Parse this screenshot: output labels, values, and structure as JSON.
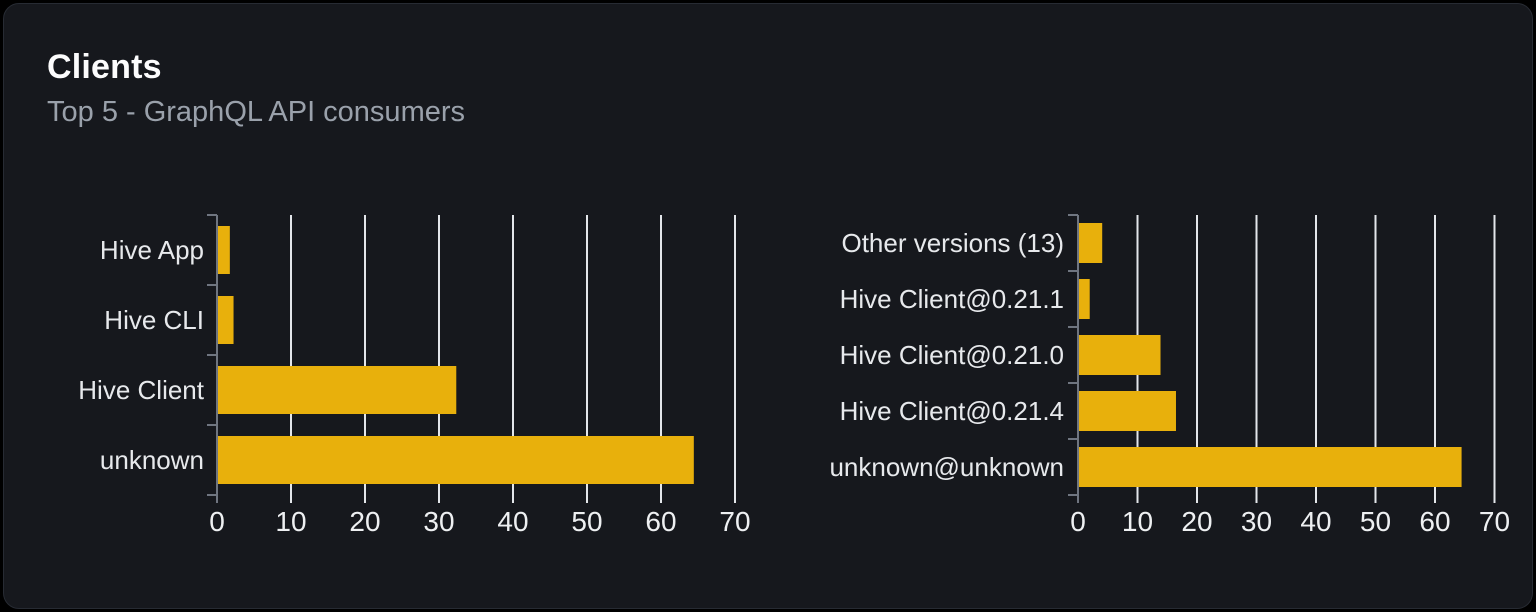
{
  "header": {
    "title": "Clients",
    "subtitle": "Top 5 - GraphQL API consumers"
  },
  "colors": {
    "page_bg": "#000000",
    "card_bg": "#16181d",
    "card_border": "#272b33",
    "bar": "#e8b00c",
    "gridline": "#e3e6ea",
    "axis": "#6f7580",
    "category_label": "#e7e9ec",
    "tick_label": "#eef0f2",
    "title": "#fcfcfd",
    "subtitle": "#9aa1ab"
  },
  "chart_data": [
    {
      "type": "bar",
      "orientation": "horizontal",
      "name": "clients-by-name",
      "categories": [
        "Hive App",
        "Hive CLI",
        "Hive Client",
        "unknown"
      ],
      "values": [
        1.6,
        2.1,
        32.2,
        64.3
      ],
      "xticks": [
        0,
        10,
        20,
        30,
        40,
        50,
        60,
        70
      ],
      "xlim": [
        0,
        70
      ],
      "grid": "vertical",
      "legend": "none",
      "title": "",
      "xlabel": "",
      "ylabel": ""
    },
    {
      "type": "bar",
      "orientation": "horizontal",
      "name": "clients-by-version",
      "categories": [
        "Other versions (13)",
        "Hive Client@0.21.1",
        "Hive Client@0.21.0",
        "Hive Client@0.21.4",
        "unknown@unknown"
      ],
      "values": [
        3.9,
        1.8,
        13.7,
        16.3,
        64.3
      ],
      "xticks": [
        0,
        10,
        20,
        30,
        40,
        50,
        60,
        70
      ],
      "xlim": [
        0,
        70
      ],
      "grid": "vertical",
      "legend": "none",
      "title": "",
      "xlabel": "",
      "ylabel": ""
    }
  ]
}
